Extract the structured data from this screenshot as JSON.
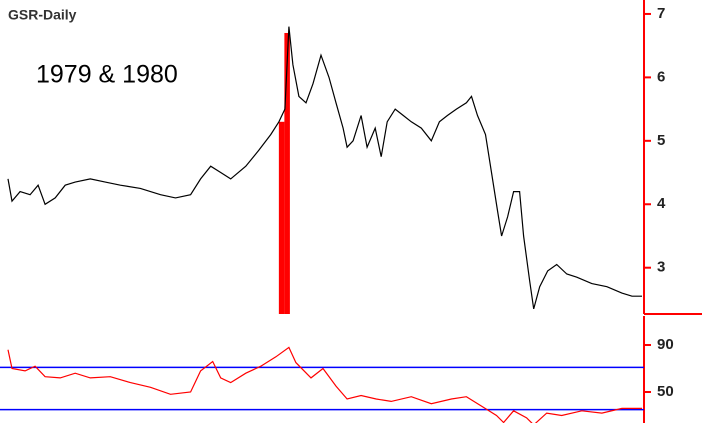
{
  "chart_data": [
    {
      "type": "line",
      "title": "GSR-Daily",
      "annotation": "1979 & 1980",
      "xlim": [
        0,
        642
      ],
      "ylim": [
        2.27,
        7.22
      ],
      "yticks": [
        3,
        4,
        5,
        6,
        7
      ],
      "axis_color": "#ff0000",
      "bar": {
        "color": "#ff0000",
        "x": [
          278,
          289
        ],
        "values": [
          5.3,
          6.7
        ]
      },
      "series": [
        {
          "color": "#000000",
          "x": [
            8,
            12,
            20,
            30,
            38,
            45,
            55,
            65,
            75,
            90,
            105,
            120,
            140,
            160,
            175,
            190,
            200,
            210,
            220,
            230,
            245,
            258,
            270,
            278,
            284,
            288,
            292,
            298,
            305,
            312,
            320,
            328,
            335,
            342,
            346,
            352,
            360,
            366,
            374,
            380,
            386,
            394,
            402,
            410,
            420,
            430,
            438,
            446,
            455,
            465,
            470,
            476,
            484,
            490,
            496,
            500,
            506,
            512,
            518,
            522,
            528,
            532,
            538,
            546,
            555,
            565,
            575,
            590,
            605,
            620,
            630,
            640
          ],
          "values": [
            4.4,
            4.05,
            4.2,
            4.15,
            4.3,
            4.0,
            4.1,
            4.3,
            4.35,
            4.4,
            4.35,
            4.3,
            4.25,
            4.15,
            4.1,
            4.15,
            4.4,
            4.6,
            4.5,
            4.4,
            4.6,
            4.85,
            5.1,
            5.3,
            5.5,
            6.8,
            6.2,
            5.7,
            5.6,
            5.9,
            6.35,
            6.0,
            5.6,
            5.2,
            4.9,
            5.0,
            5.4,
            4.9,
            5.2,
            4.75,
            5.3,
            5.5,
            5.4,
            5.3,
            5.2,
            5.0,
            5.3,
            5.4,
            5.5,
            5.6,
            5.7,
            5.4,
            5.1,
            4.5,
            3.9,
            3.5,
            3.8,
            4.2,
            4.2,
            3.5,
            2.8,
            2.35,
            2.7,
            2.95,
            3.05,
            2.9,
            2.85,
            2.75,
            2.7,
            2.6,
            2.55,
            2.55
          ]
        }
      ]
    },
    {
      "type": "line",
      "xlim": [
        0,
        642
      ],
      "ylim": [
        23.6,
        114.7
      ],
      "yticks": [
        90,
        50
      ],
      "axis_color": "#ff0000",
      "levels": {
        "color": "#0000ff",
        "values": [
          71,
          35
        ]
      },
      "series": [
        {
          "color": "#ff0000",
          "x": [
            8,
            12,
            25,
            35,
            45,
            60,
            75,
            90,
            110,
            130,
            150,
            170,
            190,
            200,
            212,
            220,
            230,
            245,
            260,
            275,
            288,
            295,
            310,
            322,
            335,
            346,
            360,
            375,
            390,
            410,
            430,
            450,
            465,
            480,
            495,
            502,
            512,
            525,
            532,
            545,
            560,
            580,
            600,
            620,
            640
          ],
          "values": [
            86,
            70,
            68,
            72,
            63,
            62,
            66,
            62,
            63,
            58,
            54,
            48,
            50,
            68,
            76,
            62,
            58,
            66,
            72,
            80,
            88,
            75,
            62,
            70,
            55,
            44,
            47,
            44,
            42,
            46,
            40,
            44,
            46,
            38,
            30,
            24,
            34,
            28,
            22,
            32,
            30,
            34,
            32,
            36,
            36
          ]
        }
      ]
    }
  ]
}
